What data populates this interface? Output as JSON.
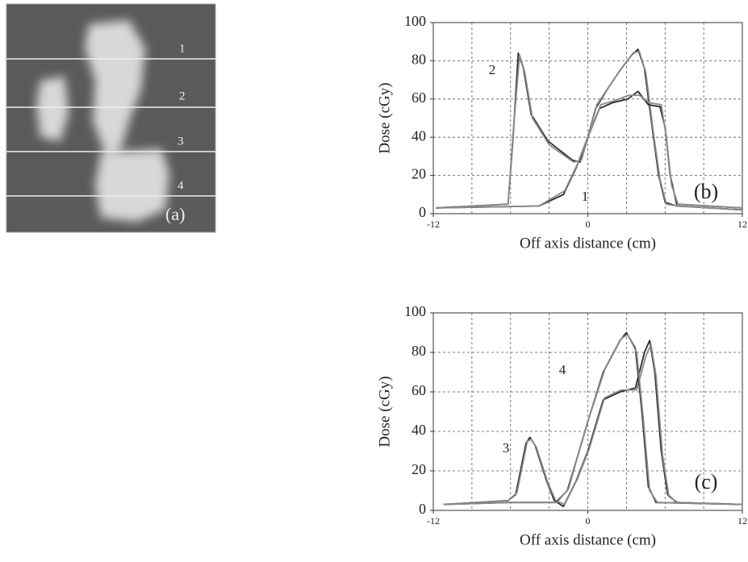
{
  "panel_a": {
    "line_labels": [
      "1",
      "2",
      "3",
      "4"
    ],
    "label": "(a)"
  },
  "chart_data": [
    {
      "type": "line",
      "xlabel": "Off axis distance (cm)",
      "ylabel": "Dose (cGy)",
      "xlim": [
        -12,
        12
      ],
      "ylim": [
        0,
        100
      ],
      "xticks": [
        -12,
        0,
        12
      ],
      "yticks": [
        0,
        20,
        40,
        60,
        80,
        100
      ],
      "grid": true,
      "xgrid": [
        -9,
        -6,
        -3,
        0,
        3,
        6,
        9
      ],
      "panel_label": "(b)",
      "annotations": [
        "2",
        "1"
      ],
      "series": [
        {
          "color": "#2a2a2a",
          "x": [
            -11.8,
            -6.2,
            -5.8,
            -5.4,
            -5,
            -4.4,
            -3.1,
            -1.2,
            -0.6,
            0,
            0.6,
            1.6,
            2.5,
            3.4,
            3.9,
            4.4,
            5,
            5.5,
            6,
            6.9,
            12
          ],
          "values": [
            3,
            5,
            40,
            84,
            76,
            52,
            38,
            28,
            27,
            40,
            55,
            66,
            75,
            83,
            86,
            76,
            45,
            20,
            6,
            4,
            2
          ]
        },
        {
          "color": "#8a8a8a",
          "x": [
            -11.8,
            -6.2,
            -5.8,
            -5.3,
            -4.9,
            -4.3,
            -3,
            -1.1,
            -0.5,
            0.1,
            0.7,
            1.7,
            2.6,
            3.5,
            4,
            4.5,
            5.1,
            5.6,
            6.1,
            7,
            12
          ],
          "values": [
            3,
            5,
            42,
            83,
            74,
            50,
            36,
            27,
            28,
            42,
            57,
            67,
            76,
            84,
            85,
            74,
            42,
            18,
            5,
            4,
            2
          ]
        },
        {
          "color": "#2a2a2a",
          "x": [
            -11.8,
            -3.8,
            -1.9,
            -0.9,
            0,
            0.9,
            1.9,
            3.1,
            3.9,
            4.7,
            5.6,
            6,
            6.4,
            6.9,
            12
          ],
          "values": [
            3,
            4,
            10,
            24,
            40,
            55,
            58,
            60,
            64,
            57,
            56,
            45,
            20,
            5,
            3
          ]
        },
        {
          "color": "#8a8a8a",
          "x": [
            -11.8,
            -3.8,
            -1.8,
            -0.8,
            0.1,
            1,
            2,
            3.2,
            4,
            4.8,
            5.7,
            6.1,
            6.5,
            7,
            12
          ],
          "values": [
            3,
            4,
            12,
            26,
            42,
            57,
            59,
            62,
            62,
            58,
            57,
            40,
            15,
            5,
            3
          ]
        }
      ]
    },
    {
      "type": "line",
      "xlabel": "Off axis distance (cm)",
      "ylabel": "Dose (cGy)",
      "xlim": [
        -12,
        12
      ],
      "ylim": [
        0,
        100
      ],
      "xticks": [
        -12,
        0,
        12
      ],
      "yticks": [
        0,
        20,
        40,
        60,
        80,
        100
      ],
      "grid": true,
      "xgrid": [
        -9,
        -6,
        -3,
        0,
        3,
        6,
        9
      ],
      "panel_label": "(c)",
      "annotations": [
        "4",
        "3"
      ],
      "series": [
        {
          "color": "#2a2a2a",
          "x": [
            -11.2,
            -6.2,
            -5.6,
            -4.8,
            -4.5,
            -4.1,
            -3.2,
            -2.6,
            -1.9,
            -0.9,
            0,
            1.2,
            2.5,
            3.7,
            4.4,
            4.8,
            5.2,
            5.7,
            6.2,
            6.9,
            12
          ],
          "values": [
            3,
            5,
            8,
            34,
            37,
            33,
            15,
            5,
            2,
            15,
            30,
            56,
            60,
            62,
            80,
            86,
            70,
            30,
            8,
            4,
            3
          ]
        },
        {
          "color": "#8a8a8a",
          "x": [
            -11.2,
            -6.2,
            -5.5,
            -4.7,
            -4.4,
            -4,
            -3.1,
            -2.5,
            -1.8,
            -0.8,
            0.1,
            1.3,
            2.6,
            3.8,
            4.5,
            4.9,
            5.3,
            5.8,
            6.3,
            7,
            12
          ],
          "values": [
            3,
            5,
            9,
            35,
            36,
            32,
            14,
            5,
            3,
            16,
            31,
            57,
            61,
            61,
            78,
            84,
            68,
            28,
            7,
            4,
            3
          ]
        },
        {
          "color": "#2a2a2a",
          "x": [
            -11.2,
            -6.2,
            -2.5,
            -1.6,
            -0.9,
            0,
            1.2,
            2.5,
            3,
            3.7,
            4.2,
            4.7,
            5.3,
            12
          ],
          "values": [
            3,
            4,
            4,
            10,
            25,
            45,
            70,
            86,
            90,
            82,
            50,
            12,
            4,
            3
          ]
        },
        {
          "color": "#8a8a8a",
          "x": [
            -11.2,
            -6.2,
            -2.4,
            -1.5,
            -0.8,
            0.1,
            1.3,
            2.6,
            3.1,
            3.8,
            4.3,
            4.8,
            5.4,
            12
          ],
          "values": [
            3,
            4,
            4,
            11,
            27,
            47,
            71,
            87,
            89,
            80,
            47,
            10,
            4,
            3
          ]
        }
      ]
    }
  ]
}
